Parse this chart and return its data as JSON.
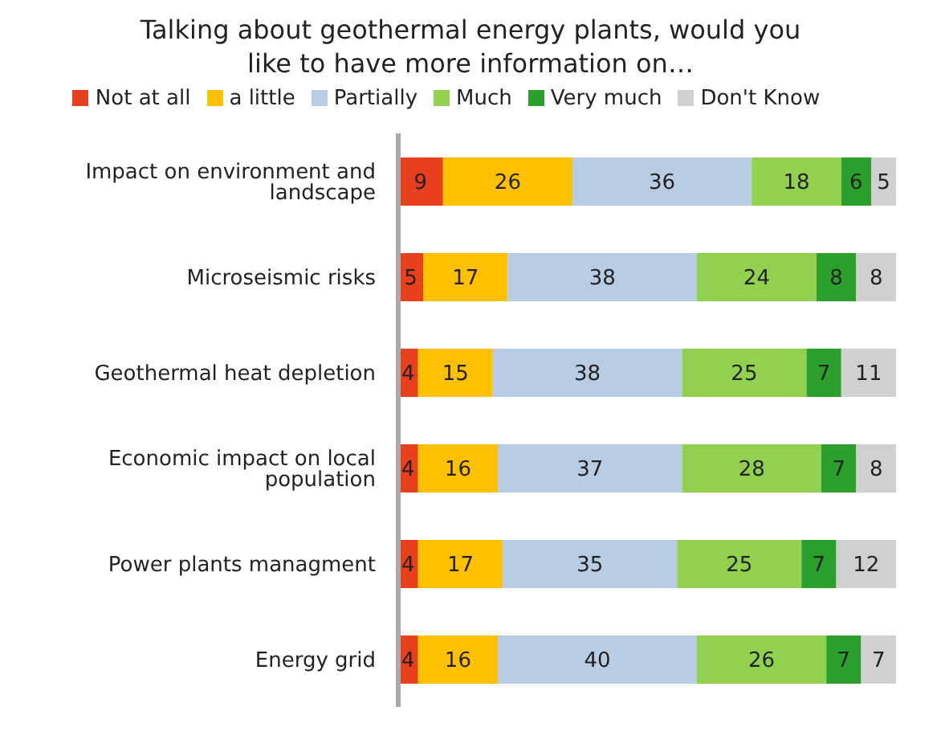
{
  "chart_data": {
    "type": "bar",
    "orientation": "horizontal",
    "stacked": true,
    "title": "Talking about geothermal energy plants, would you like to have more information on…",
    "categories": [
      "Impact on environment and landscape",
      "Microseismic risks",
      "Geothermal heat depletion",
      "Economic impact on local population",
      "Power plants managment",
      "Energy grid"
    ],
    "series": [
      {
        "name": "Not at all",
        "color": "#e8401c",
        "values": [
          9,
          5,
          4,
          4,
          4,
          4
        ]
      },
      {
        "name": "a little",
        "color": "#ffc000",
        "values": [
          26,
          17,
          15,
          16,
          17,
          16
        ]
      },
      {
        "name": "Partially",
        "color": "#b8cce4",
        "values": [
          36,
          38,
          38,
          37,
          35,
          40
        ]
      },
      {
        "name": "Much",
        "color": "#92d050",
        "values": [
          18,
          24,
          25,
          28,
          25,
          26
        ]
      },
      {
        "name": "Very much",
        "color": "#2ca02c",
        "values": [
          6,
          8,
          7,
          7,
          7,
          7
        ]
      },
      {
        "name": "Don't Know",
        "color": "#d0d0d0",
        "values": [
          5,
          8,
          11,
          8,
          12,
          7
        ]
      }
    ],
    "data_labels": true,
    "legend": "top"
  }
}
